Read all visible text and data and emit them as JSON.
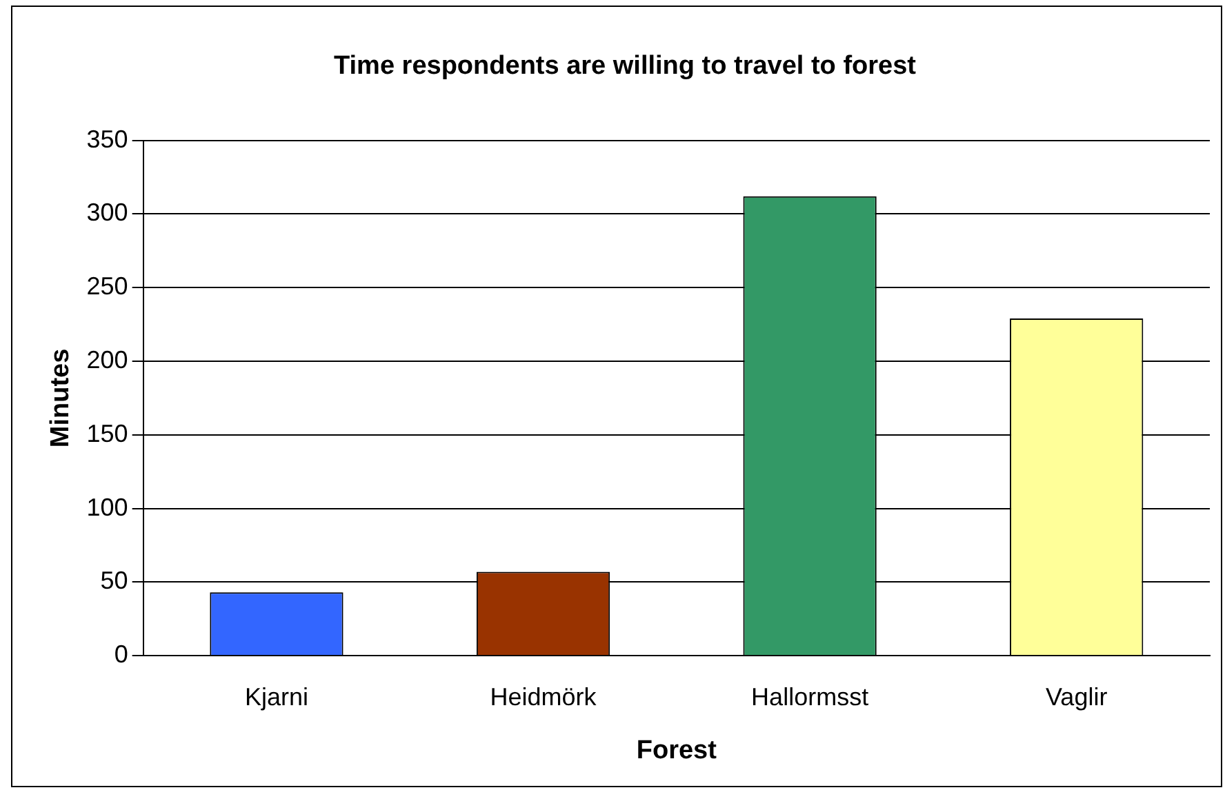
{
  "chart_data": {
    "type": "bar",
    "title": "Time respondents are willing to travel to forest",
    "xlabel": "Forest",
    "ylabel": "Minutes",
    "categories": [
      "Kjarni",
      "Heidmörk",
      "Hallormsst",
      "Vaglir"
    ],
    "values": [
      43,
      57,
      312,
      229
    ],
    "colors": [
      "#3366ff",
      "#993300",
      "#339966",
      "#ffff99"
    ],
    "ylim": [
      0,
      350
    ],
    "yticks": [
      0,
      50,
      100,
      150,
      200,
      250,
      300,
      350
    ],
    "grid": "y",
    "legend": false
  }
}
